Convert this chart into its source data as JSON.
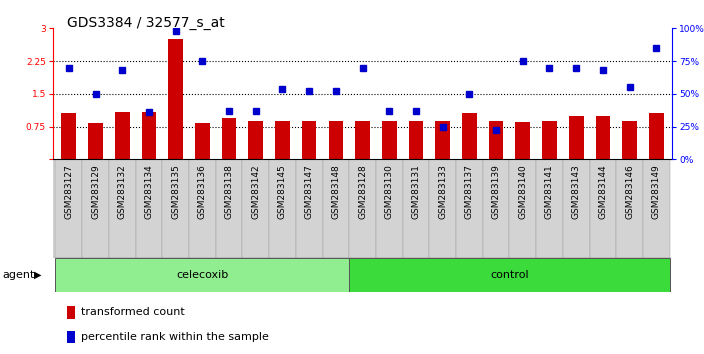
{
  "title": "GDS3384 / 32577_s_at",
  "samples": [
    "GSM283127",
    "GSM283129",
    "GSM283132",
    "GSM283134",
    "GSM283135",
    "GSM283136",
    "GSM283138",
    "GSM283142",
    "GSM283145",
    "GSM283147",
    "GSM283148",
    "GSM283128",
    "GSM283130",
    "GSM283131",
    "GSM283133",
    "GSM283137",
    "GSM283139",
    "GSM283140",
    "GSM283141",
    "GSM283143",
    "GSM283144",
    "GSM283146",
    "GSM283149"
  ],
  "bar_values": [
    1.05,
    0.83,
    1.08,
    1.08,
    2.75,
    0.82,
    0.95,
    0.87,
    0.87,
    0.87,
    0.87,
    0.87,
    0.87,
    0.87,
    0.87,
    1.05,
    0.87,
    0.85,
    0.87,
    1.0,
    1.0,
    0.87,
    1.05
  ],
  "pct_values": [
    70,
    50,
    68,
    36,
    98,
    75,
    37,
    37,
    54,
    52,
    52,
    70,
    37,
    37,
    25,
    50,
    22,
    75,
    70,
    70,
    68,
    55,
    85
  ],
  "celecoxib_count": 11,
  "control_count": 12,
  "ylim_left": [
    0,
    3
  ],
  "ylim_right": [
    0,
    100
  ],
  "yticks_left": [
    0,
    0.75,
    1.5,
    2.25,
    3
  ],
  "yticks_right": [
    0,
    25,
    50,
    75,
    100
  ],
  "ytick_labels_right": [
    "0%",
    "25%",
    "50%",
    "75%",
    "100%"
  ],
  "hlines": [
    0.75,
    1.5,
    2.25
  ],
  "bar_color": "#CC0000",
  "dot_color": "#0000CC",
  "celecoxib_color": "#90EE90",
  "control_color": "#3ADB3A",
  "xtick_bg": "#D3D3D3",
  "agent_label": "agent",
  "celecoxib_label": "celecoxib",
  "control_label": "control",
  "legend1": "transformed count",
  "legend2": "percentile rank within the sample",
  "title_fontsize": 10,
  "tick_fontsize": 6.5,
  "label_fontsize": 8
}
